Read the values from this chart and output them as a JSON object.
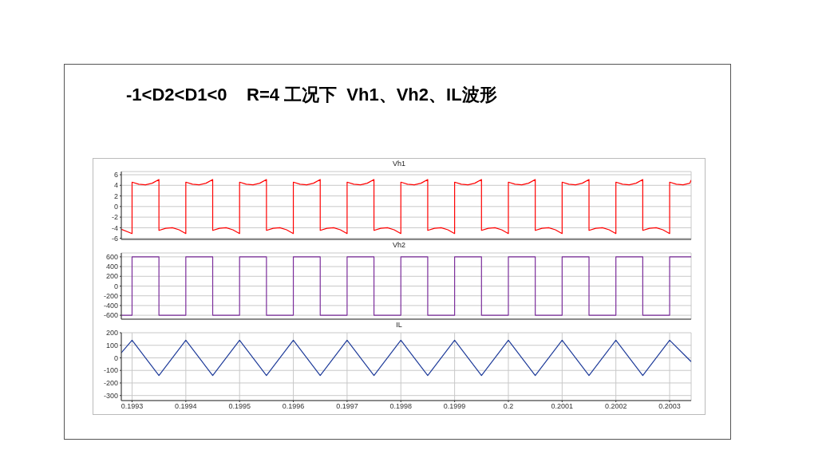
{
  "chart_data": [
    {
      "type": "line",
      "title": "-1<D2<D1<0    R=4 工况下  Vh1、Vh2、IL波形",
      "subtitle": "Vh1",
      "grid": true,
      "tick_labels": "y",
      "xlim": [
        0.19928,
        0.20034
      ],
      "xticks": [
        0.1993,
        0.1994,
        0.1995,
        0.1996,
        0.1997,
        0.1998,
        0.1999,
        0.2,
        0.2001,
        0.2002,
        0.2003
      ],
      "ylim": [
        -6.2,
        6.6
      ],
      "yticks": [
        -6,
        -4,
        -2,
        0,
        2,
        4,
        6
      ],
      "series": [
        {
          "color": "#ff0000",
          "x": [
            0.19928,
            0.1993,
            0.1993,
            0.1993125,
            0.199325,
            0.1993375,
            0.19935,
            0.19935,
            0.1993625,
            0.199375,
            0.1993875,
            0.1994,
            0.1994,
            0.1994125,
            0.199425,
            0.1994375,
            0.19945,
            0.19945,
            0.1994625,
            0.199475,
            0.1994875,
            0.1995,
            0.1995,
            0.1995125,
            0.199525,
            0.1995375,
            0.19955,
            0.19955,
            0.1995625,
            0.199575,
            0.1995875,
            0.1996,
            0.1996,
            0.1996125,
            0.199625,
            0.1996375,
            0.19965,
            0.19965,
            0.1996625,
            0.199675,
            0.1996875,
            0.1997,
            0.1997,
            0.1997125,
            0.199725,
            0.1997375,
            0.19975,
            0.19975,
            0.1997625,
            0.199775,
            0.1997875,
            0.1998,
            0.1998,
            0.1998125,
            0.199825,
            0.1998375,
            0.19985,
            0.19985,
            0.1998625,
            0.199875,
            0.1998875,
            0.1999,
            0.1999,
            0.1999125,
            0.199925,
            0.1999375,
            0.19995,
            0.19995,
            0.1999625,
            0.199975,
            0.1999875,
            0.2,
            0.2,
            0.2000125,
            0.200025,
            0.2000375,
            0.20005,
            0.20005,
            0.2000625,
            0.200075,
            0.2000875,
            0.2001,
            0.2001,
            0.2001125,
            0.200125,
            0.2001375,
            0.20015,
            0.20015,
            0.2001625,
            0.200175,
            0.2001875,
            0.2002,
            0.2002,
            0.2002125,
            0.200225,
            0.2002375,
            0.20025,
            0.20025,
            0.2002625,
            0.200275,
            0.2002875,
            0.2003,
            0.2003,
            0.2003125,
            0.200325,
            0.2003375,
            0.20034
          ],
          "values": [
            -4.3,
            -5.1,
            4.6,
            4.2,
            4.1,
            4.4,
            5.1,
            -4.5,
            -4.1,
            -4.0,
            -4.4,
            -5.1,
            4.6,
            4.2,
            4.1,
            4.4,
            5.1,
            -4.5,
            -4.1,
            -4.0,
            -4.4,
            -5.1,
            4.6,
            4.2,
            4.1,
            4.4,
            5.1,
            -4.5,
            -4.1,
            -4.0,
            -4.4,
            -5.1,
            4.6,
            4.2,
            4.1,
            4.4,
            5.1,
            -4.5,
            -4.1,
            -4.0,
            -4.4,
            -5.1,
            4.6,
            4.2,
            4.1,
            4.4,
            5.1,
            -4.5,
            -4.1,
            -4.0,
            -4.4,
            -5.1,
            4.6,
            4.2,
            4.1,
            4.4,
            5.1,
            -4.5,
            -4.1,
            -4.0,
            -4.4,
            -5.1,
            4.6,
            4.2,
            4.1,
            4.4,
            5.1,
            -4.5,
            -4.1,
            -4.0,
            -4.4,
            -5.1,
            4.6,
            4.2,
            4.1,
            4.4,
            5.1,
            -4.5,
            -4.1,
            -4.0,
            -4.4,
            -5.1,
            4.6,
            4.2,
            4.1,
            4.4,
            5.1,
            -4.5,
            -4.1,
            -4.0,
            -4.4,
            -5.1,
            4.6,
            4.2,
            4.1,
            4.4,
            5.1,
            -4.5,
            -4.1,
            -4.0,
            -4.4,
            -5.1,
            4.6,
            4.2,
            4.1,
            4.4,
            5.0
          ]
        }
      ]
    },
    {
      "type": "line",
      "title": "Vh2",
      "grid": true,
      "tick_labels": "y",
      "xlim": [
        0.19928,
        0.20034
      ],
      "xticks": [
        0.1993,
        0.1994,
        0.1995,
        0.1996,
        0.1997,
        0.1998,
        0.1999,
        0.2,
        0.2001,
        0.2002,
        0.2003
      ],
      "ylim": [
        -680,
        680
      ],
      "yticks": [
        -600,
        -400,
        -200,
        0,
        200,
        400,
        600
      ],
      "series": [
        {
          "color": "#7b2d9b",
          "x": [
            0.19928,
            0.1993,
            0.1993,
            0.19935,
            0.19935,
            0.1994,
            0.1994,
            0.19945,
            0.19945,
            0.1995,
            0.1995,
            0.19955,
            0.19955,
            0.1996,
            0.1996,
            0.19965,
            0.19965,
            0.1997,
            0.1997,
            0.19975,
            0.19975,
            0.1998,
            0.1998,
            0.19985,
            0.19985,
            0.1999,
            0.1999,
            0.19995,
            0.19995,
            0.2,
            0.2,
            0.20005,
            0.20005,
            0.2001,
            0.2001,
            0.20015,
            0.20015,
            0.2002,
            0.2002,
            0.20025,
            0.20025,
            0.2003,
            0.2003,
            0.20034
          ],
          "values": [
            -600,
            -600,
            600,
            600,
            -600,
            -600,
            600,
            600,
            -600,
            -600,
            600,
            600,
            -600,
            -600,
            600,
            600,
            -600,
            -600,
            600,
            600,
            -600,
            -600,
            600,
            600,
            -600,
            -600,
            600,
            600,
            -600,
            -600,
            600,
            600,
            -600,
            -600,
            600,
            600,
            -600,
            -600,
            600,
            600,
            -600,
            -600,
            600,
            600
          ]
        }
      ]
    },
    {
      "type": "line",
      "title": "IL",
      "grid": true,
      "xlim": [
        0.19928,
        0.20034
      ],
      "xticks": [
        0.1993,
        0.1994,
        0.1995,
        0.1996,
        0.1997,
        0.1998,
        0.1999,
        0.2,
        0.2001,
        0.2002,
        0.2003
      ],
      "ylim": [
        -340,
        200
      ],
      "yticks": [
        -300,
        -200,
        -100,
        0,
        100,
        200
      ],
      "series": [
        {
          "color": "#1f3c9a",
          "x": [
            0.19928,
            0.1993,
            0.19935,
            0.1994,
            0.19945,
            0.1995,
            0.19955,
            0.1996,
            0.19965,
            0.1997,
            0.19975,
            0.1998,
            0.19985,
            0.1999,
            0.19995,
            0.2,
            0.20005,
            0.2001,
            0.20015,
            0.2002,
            0.20025,
            0.2003,
            0.20034
          ],
          "values": [
            40,
            140,
            -140,
            140,
            -140,
            140,
            -140,
            140,
            -140,
            140,
            -140,
            140,
            -140,
            140,
            -140,
            140,
            -140,
            140,
            -140,
            140,
            -140,
            140,
            -30
          ]
        }
      ]
    }
  ]
}
